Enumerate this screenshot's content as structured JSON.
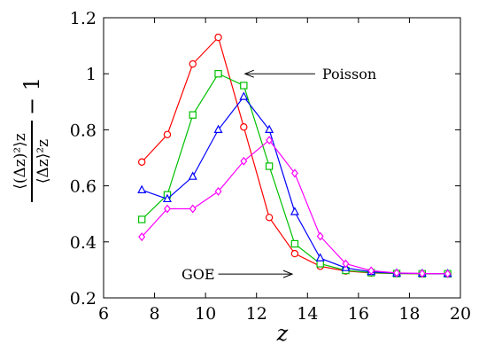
{
  "chart_data": {
    "type": "line",
    "xlabel": "z",
    "ylabel": {
      "top": "⟨(Δz)²⟩z",
      "bottom": "⟨Δz⟩²z",
      "suffix": "− 1"
    },
    "xlim": [
      6,
      20
    ],
    "ylim": [
      0.2,
      1.2
    ],
    "xticks": [
      6,
      8,
      10,
      12,
      14,
      16,
      18,
      20
    ],
    "yticks": [
      0.2,
      0.4,
      0.6,
      0.8,
      1.0,
      1.2
    ],
    "xtick_labels": [
      "6",
      "8",
      "10",
      "12",
      "14",
      "16",
      "18",
      "20"
    ],
    "ytick_labels": [
      "0.2",
      "0.4",
      "0.6",
      "0.8",
      "1",
      "1.2"
    ],
    "grid": false,
    "series": [
      {
        "marker": "circle",
        "color": "#ff0000",
        "x": [
          7.5,
          8.5,
          9.5,
          10.5,
          11.5,
          12.5,
          13.5,
          14.5,
          15.5,
          16.5,
          17.5,
          18.5,
          19.5
        ],
        "values": [
          0.685,
          0.783,
          1.035,
          1.13,
          0.81,
          0.487,
          0.358,
          0.313,
          0.296,
          0.289,
          0.287,
          0.286,
          0.286
        ]
      },
      {
        "marker": "square",
        "color": "#00c000",
        "x": [
          7.5,
          8.5,
          9.5,
          10.5,
          11.5,
          12.5,
          13.5,
          14.5,
          15.5,
          16.5,
          17.5,
          18.5,
          19.5
        ],
        "values": [
          0.48,
          0.568,
          0.853,
          1.0,
          0.958,
          0.67,
          0.393,
          0.322,
          0.298,
          0.29,
          0.287,
          0.286,
          0.286
        ]
      },
      {
        "marker": "triangle",
        "color": "#0000ff",
        "x": [
          7.5,
          8.5,
          9.5,
          10.5,
          11.5,
          12.5,
          13.5,
          14.5,
          15.5,
          16.5,
          17.5,
          18.5,
          19.5
        ],
        "values": [
          0.585,
          0.553,
          0.633,
          0.8,
          0.918,
          0.8,
          0.507,
          0.342,
          0.307,
          0.293,
          0.288,
          0.287,
          0.286
        ]
      },
      {
        "marker": "diamond",
        "color": "#ff00ff",
        "x": [
          7.5,
          8.5,
          9.5,
          10.5,
          11.5,
          12.5,
          13.5,
          14.5,
          15.5,
          16.5,
          17.5,
          18.5,
          19.5
        ],
        "values": [
          0.418,
          0.518,
          0.518,
          0.58,
          0.688,
          0.763,
          0.645,
          0.42,
          0.322,
          0.297,
          0.289,
          0.287,
          0.286
        ]
      }
    ],
    "annotations": [
      {
        "text": "Poisson",
        "arrow_to": {
          "x": 11.55,
          "y": 1.0
        },
        "arrow_from": {
          "x": 14.3,
          "y": 1.0
        }
      },
      {
        "text": "GOE",
        "arrow_to": {
          "x": 13.4,
          "y": 0.285
        },
        "arrow_from": {
          "x": 10.5,
          "y": 0.285
        }
      }
    ]
  }
}
